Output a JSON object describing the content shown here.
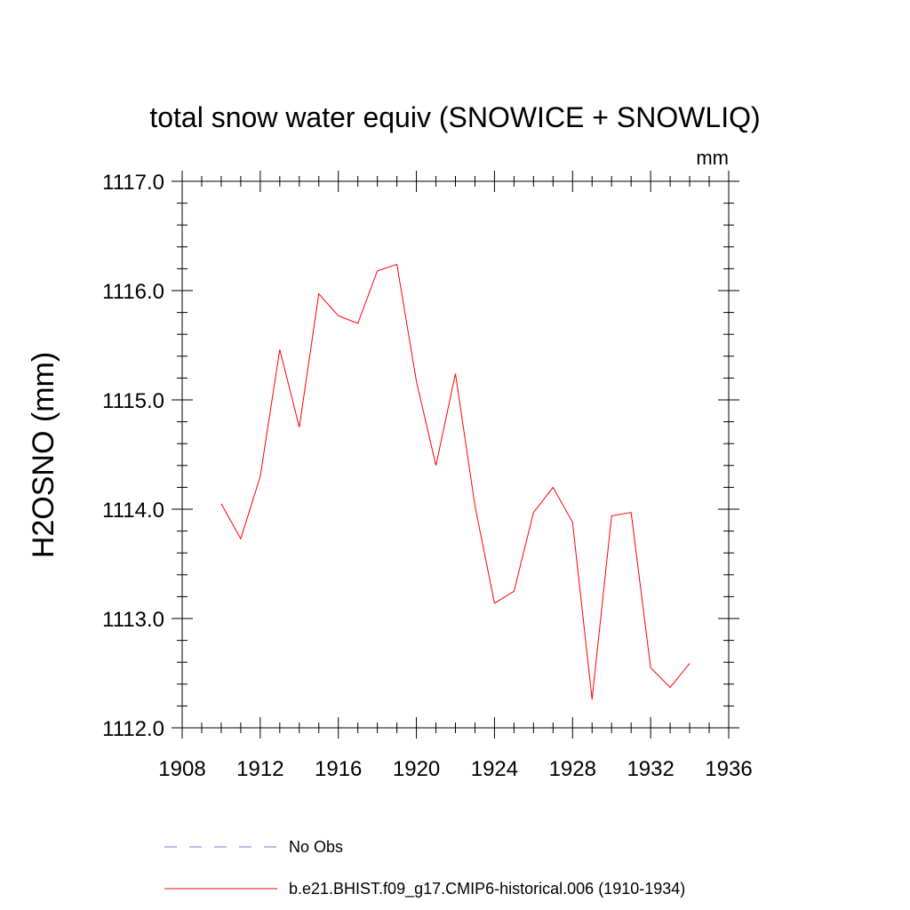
{
  "chart_data": {
    "type": "line",
    "title": "total snow water equiv (SNOWICE + SNOWLIQ)",
    "units": "mm",
    "xlabel": "",
    "ylabel": "H2OSNO  (mm)",
    "xlim": [
      1908,
      1936
    ],
    "ylim": [
      1112.0,
      1117.0
    ],
    "x_ticks": [
      1908,
      1912,
      1916,
      1920,
      1924,
      1928,
      1932,
      1936
    ],
    "x_tick_labels": [
      "1908",
      "1912",
      "1916",
      "1920",
      "1924",
      "1928",
      "1932",
      "1936"
    ],
    "y_ticks": [
      1112.0,
      1113.0,
      1114.0,
      1115.0,
      1116.0,
      1117.0
    ],
    "y_tick_labels": [
      "1112.0",
      "1113.0",
      "1114.0",
      "1115.0",
      "1116.0",
      "1117.0"
    ],
    "grid": false,
    "series": [
      {
        "name": "b.e21.BHIST.f09_g17.CMIP6-historical.006 (1910-1934)",
        "color": "#ff0000",
        "style": "solid",
        "x": [
          1910,
          1911,
          1912,
          1913,
          1914,
          1915,
          1916,
          1917,
          1918,
          1919,
          1920,
          1921,
          1922,
          1923,
          1924,
          1925,
          1926,
          1927,
          1928,
          1929,
          1930,
          1931,
          1932,
          1933,
          1934
        ],
        "values": [
          1114.05,
          1113.73,
          1114.3,
          1115.46,
          1114.75,
          1115.97,
          1115.77,
          1115.7,
          1116.18,
          1116.24,
          1115.17,
          1114.4,
          1115.24,
          1114.03,
          1113.14,
          1113.25,
          1113.97,
          1114.2,
          1113.88,
          1112.26,
          1113.94,
          1113.97,
          1112.55,
          1112.37,
          1112.59
        ]
      }
    ],
    "legend": {
      "placement": "bottom",
      "entries": [
        {
          "label": "No Obs",
          "color": "#7777cc",
          "style": "dashed"
        },
        {
          "label": "b.e21.BHIST.f09_g17.CMIP6-historical.006 (1910-1934)",
          "color": "#ff0000",
          "style": "solid"
        }
      ]
    }
  }
}
